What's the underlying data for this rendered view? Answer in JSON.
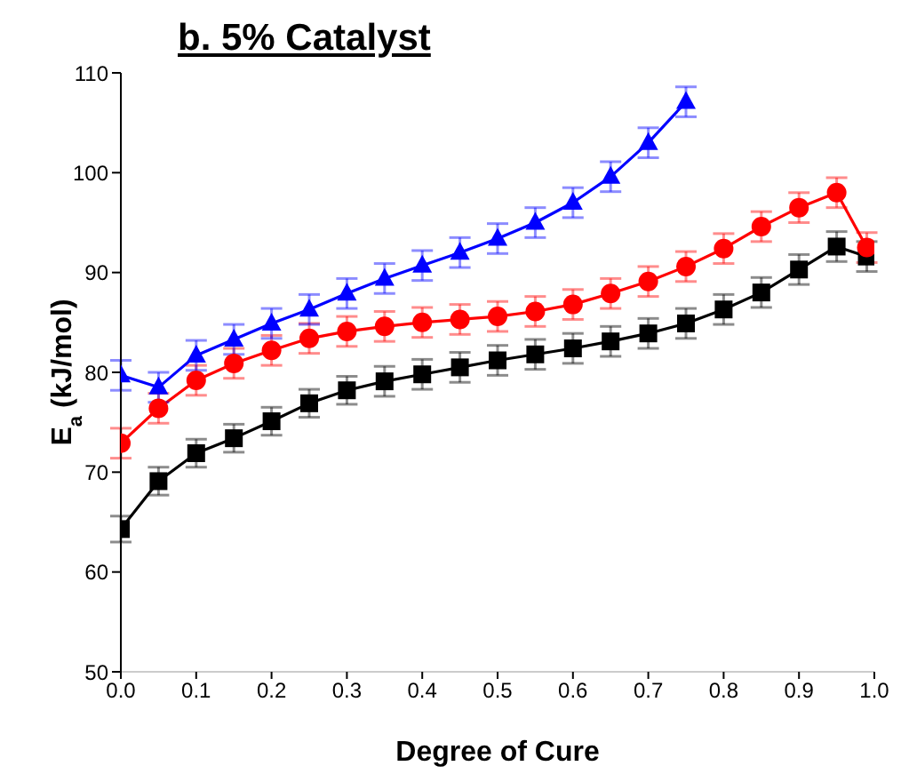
{
  "chart_data": {
    "type": "line",
    "title": "b. 5% Catalyst",
    "xlabel": "Degree of Cure",
    "ylabel": "E$_{a}$ (kJ/mol)",
    "x": [
      0,
      0.05,
      0.1,
      0.15,
      0.2,
      0.25,
      0.3,
      0.35,
      0.4,
      0.45,
      0.5,
      0.55,
      0.6,
      0.65,
      0.7,
      0.75,
      0.8,
      0.85,
      0.9,
      0.95,
      0.99
    ],
    "series": [
      {
        "color": "#000000",
        "marker": "square",
        "values": [
          64.3,
          69.1,
          71.9,
          73.4,
          75.1,
          76.9,
          78.2,
          79.1,
          79.8,
          80.5,
          81.2,
          81.8,
          82.4,
          83.1,
          83.9,
          84.9,
          86.3,
          88.0,
          90.3,
          92.6,
          91.6
        ],
        "errors": [
          1.3,
          1.4,
          1.4,
          1.4,
          1.4,
          1.4,
          1.4,
          1.5,
          1.5,
          1.5,
          1.5,
          1.5,
          1.5,
          1.5,
          1.5,
          1.5,
          1.5,
          1.5,
          1.5,
          1.5,
          1.5
        ]
      },
      {
        "color": "#ff0000",
        "marker": "circle",
        "values": [
          72.9,
          76.4,
          79.2,
          80.9,
          82.2,
          83.4,
          84.1,
          84.6,
          85.0,
          85.3,
          85.6,
          86.1,
          86.8,
          87.9,
          89.1,
          90.6,
          92.4,
          94.6,
          96.5,
          98.0,
          92.5
        ],
        "errors": [
          1.5,
          1.5,
          1.5,
          1.5,
          1.5,
          1.5,
          1.5,
          1.5,
          1.5,
          1.5,
          1.5,
          1.5,
          1.5,
          1.5,
          1.5,
          1.5,
          1.5,
          1.5,
          1.5,
          1.5,
          1.5
        ]
      },
      {
        "color": "#0000ff",
        "marker": "triangle",
        "values": [
          79.7,
          78.5,
          81.7,
          83.3,
          84.9,
          86.3,
          87.9,
          89.4,
          90.7,
          92.0,
          93.4,
          95.0,
          97.0,
          99.6,
          103.0,
          107.1,
          null,
          null,
          null,
          null,
          null
        ],
        "errors": [
          1.5,
          1.5,
          1.5,
          1.5,
          1.5,
          1.5,
          1.5,
          1.5,
          1.5,
          1.5,
          1.5,
          1.5,
          1.5,
          1.5,
          1.5,
          1.5,
          null,
          null,
          null,
          null,
          null
        ]
      }
    ],
    "xlim": [
      0,
      1.0
    ],
    "xticks": [
      {
        "value": 0,
        "label": "0.0"
      },
      0.1,
      0.2,
      0.3,
      0.4,
      0.5,
      0.6,
      0.7,
      0.8,
      0.9,
      {
        "value": 1,
        "label": "1.0"
      }
    ],
    "ylim": [
      50,
      110
    ],
    "yticks": [
      50,
      60,
      70,
      80,
      90,
      100,
      110
    ],
    "grid": false,
    "legend": false
  }
}
